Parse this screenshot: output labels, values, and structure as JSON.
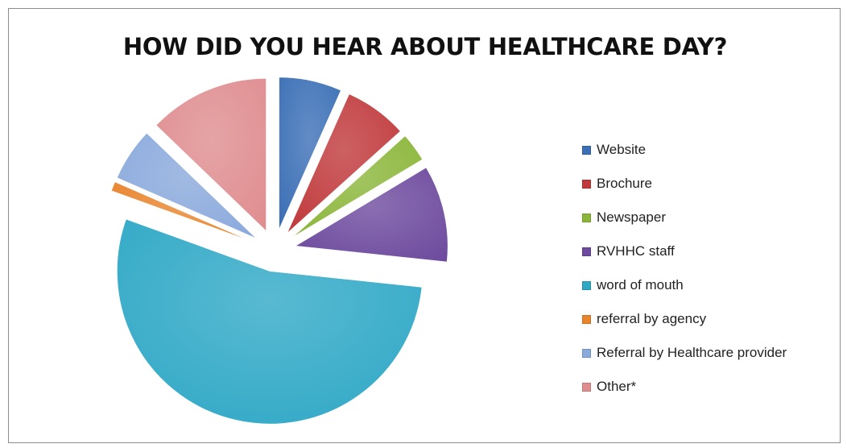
{
  "chart_data": {
    "type": "pie",
    "title": "HOW DID YOU HEAR ABOUT HEALTHCARE DAY?",
    "exploded": true,
    "legend_position": "right",
    "slices": [
      {
        "label": "Website",
        "value": 6.5,
        "color": "#3b6fb6"
      },
      {
        "label": "Brochure",
        "value": 6.5,
        "color": "#c0393b"
      },
      {
        "label": "Newspaper",
        "value": 3.0,
        "color": "#8bb63a"
      },
      {
        "label": "RVHHC staff",
        "value": 10.0,
        "color": "#6d4a9e"
      },
      {
        "label": "word of mouth",
        "value": 52.5,
        "color": "#2fa8c6"
      },
      {
        "label": "referral by agency",
        "value": 1.0,
        "color": "#e8842c"
      },
      {
        "label": "Referral by Healthcare provider",
        "value": 5.5,
        "color": "#8aa9dc"
      },
      {
        "label": "Other*",
        "value": 12.5,
        "color": "#df8d8f"
      }
    ]
  }
}
